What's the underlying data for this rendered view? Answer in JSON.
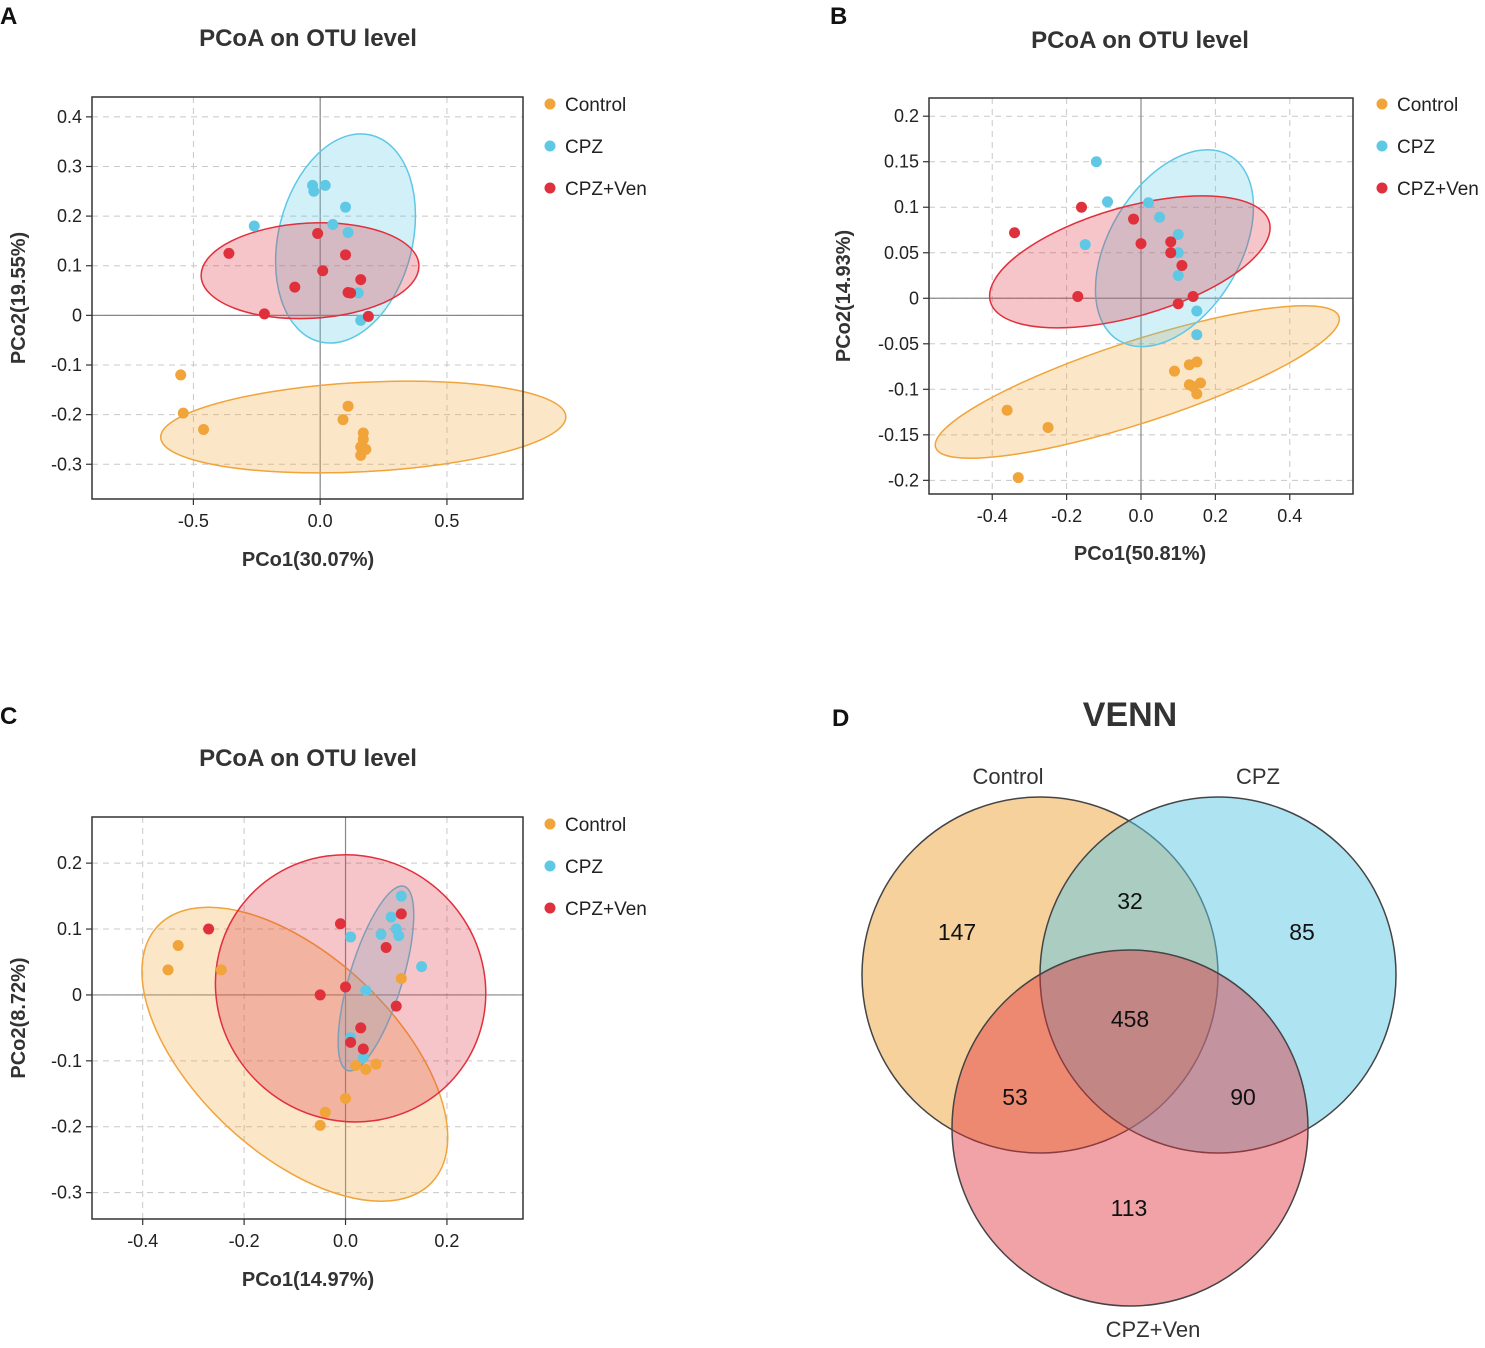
{
  "colors": {
    "Control": "#f0a43a",
    "CPZ": "#5ec8e5",
    "CPZ+Ven": "#e0303c",
    "grid": "#c8c8c8",
    "zero": "#888888"
  },
  "chart_data": [
    {
      "panel": "A",
      "type": "scatter",
      "title": "PCoA on OTU level",
      "xlabel": "PCo1(30.07%)",
      "ylabel": "PCo2(19.55%)",
      "xlim": [
        -0.9,
        0.8
      ],
      "ylim": [
        -0.37,
        0.44
      ],
      "xticks": [
        -0.5,
        0.0,
        0.5
      ],
      "xtick_labels": [
        "-0.5",
        "0.0",
        "0.5"
      ],
      "yticks": [
        -0.3,
        -0.2,
        -0.1,
        0,
        0.1,
        0.2,
        0.3,
        0.4
      ],
      "ytick_labels": [
        "-0.3",
        "-0.2",
        "-0.1",
        "0",
        "0.1",
        "0.2",
        "0.3",
        "0.4"
      ],
      "legend": [
        "Control",
        "CPZ",
        "CPZ+Ven"
      ],
      "series": [
        {
          "name": "Control",
          "points": [
            [
              -0.55,
              -0.12
            ],
            [
              -0.54,
              -0.197
            ],
            [
              -0.46,
              -0.23
            ],
            [
              0.11,
              -0.183
            ],
            [
              0.09,
              -0.21
            ],
            [
              0.17,
              -0.237
            ],
            [
              0.17,
              -0.25
            ],
            [
              0.16,
              -0.265
            ],
            [
              0.18,
              -0.27
            ],
            [
              0.16,
              -0.282
            ]
          ],
          "ellipse": {
            "cx": 0.17,
            "cy": -0.225,
            "rx": 0.8,
            "ry": 0.09,
            "angle": -3
          }
        },
        {
          "name": "CPZ",
          "points": [
            [
              -0.03,
              0.262
            ],
            [
              -0.025,
              0.25
            ],
            [
              0.02,
              0.262
            ],
            [
              -0.26,
              0.18
            ],
            [
              0.1,
              0.218
            ],
            [
              0.05,
              0.183
            ],
            [
              0.11,
              0.167
            ],
            [
              0.15,
              0.045
            ],
            [
              0.16,
              -0.01
            ],
            [
              0.19,
              -0.002
            ]
          ],
          "ellipse": {
            "cx": 0.1,
            "cy": 0.155,
            "rx": 0.42,
            "ry": 0.135,
            "angle": -76
          }
        },
        {
          "name": "CPZ+Ven",
          "points": [
            [
              -0.36,
              0.125
            ],
            [
              -0.01,
              0.165
            ],
            [
              0.1,
              0.122
            ],
            [
              0.01,
              0.09
            ],
            [
              0.16,
              0.072
            ],
            [
              -0.1,
              0.057
            ],
            [
              0.11,
              0.046
            ],
            [
              0.12,
              0.045
            ],
            [
              -0.22,
              0.003
            ],
            [
              0.19,
              -0.002
            ]
          ],
          "ellipse": {
            "cx": -0.04,
            "cy": 0.09,
            "rx": 0.43,
            "ry": 0.096,
            "angle": -3
          }
        }
      ]
    },
    {
      "panel": "B",
      "type": "scatter",
      "title": "PCoA on OTU level",
      "xlabel": "PCo1(50.81%)",
      "ylabel": "PCo2(14.93%)",
      "xlim": [
        -0.57,
        0.57
      ],
      "ylim": [
        -0.215,
        0.22
      ],
      "xticks": [
        -0.4,
        -0.2,
        0.0,
        0.2,
        0.4
      ],
      "xtick_labels": [
        "-0.4",
        "-0.2",
        "0.0",
        "0.2",
        "0.4"
      ],
      "yticks": [
        -0.2,
        -0.15,
        -0.1,
        -0.05,
        0,
        0.05,
        0.1,
        0.15,
        0.2
      ],
      "ytick_labels": [
        "-0.2",
        "-0.15",
        "-0.1",
        "-0.05",
        "0",
        "0.05",
        "0.1",
        "0.15",
        "0.2"
      ],
      "legend": [
        "Control",
        "CPZ",
        "CPZ+Ven"
      ],
      "series": [
        {
          "name": "Control",
          "points": [
            [
              -0.36,
              -0.123
            ],
            [
              -0.25,
              -0.142
            ],
            [
              -0.33,
              -0.197
            ],
            [
              0.09,
              -0.08
            ],
            [
              0.13,
              -0.073
            ],
            [
              0.15,
              -0.07
            ],
            [
              0.13,
              -0.095
            ],
            [
              0.14,
              -0.097
            ],
            [
              0.16,
              -0.093
            ],
            [
              0.15,
              -0.105
            ]
          ],
          "ellipse": {
            "cx": -0.01,
            "cy": -0.092,
            "rx": 0.57,
            "ry": 0.045,
            "angle": -18
          }
        },
        {
          "name": "CPZ",
          "points": [
            [
              -0.12,
              0.15
            ],
            [
              -0.09,
              0.106
            ],
            [
              0.02,
              0.105
            ],
            [
              0.05,
              0.089
            ],
            [
              0.1,
              0.07
            ],
            [
              -0.15,
              0.059
            ],
            [
              0.1,
              0.025
            ],
            [
              0.15,
              -0.014
            ],
            [
              0.15,
              -0.04
            ],
            [
              0.1,
              0.05
            ]
          ],
          "ellipse": {
            "cx": 0.09,
            "cy": 0.055,
            "rx": 0.29,
            "ry": 0.072,
            "angle": -59
          }
        },
        {
          "name": "CPZ+Ven",
          "points": [
            [
              -0.34,
              0.072
            ],
            [
              -0.16,
              0.1
            ],
            [
              -0.02,
              0.087
            ],
            [
              0.0,
              0.06
            ],
            [
              0.08,
              0.062
            ],
            [
              0.08,
              0.05
            ],
            [
              0.11,
              0.036
            ],
            [
              -0.17,
              0.002
            ],
            [
              0.1,
              -0.006
            ],
            [
              0.14,
              0.002
            ]
          ],
          "ellipse": {
            "cx": -0.03,
            "cy": 0.04,
            "rx": 0.39,
            "ry": 0.06,
            "angle": -16
          }
        }
      ]
    },
    {
      "panel": "C",
      "type": "scatter",
      "title": "PCoA on OTU level",
      "xlabel": "PCo1(14.97%)",
      "ylabel": "PCo2(8.72%)",
      "xlim": [
        -0.5,
        0.35
      ],
      "ylim": [
        -0.34,
        0.27
      ],
      "xticks": [
        -0.4,
        -0.2,
        0.0,
        0.2
      ],
      "xtick_labels": [
        "-0.4",
        "-0.2",
        "0.0",
        "0.2"
      ],
      "yticks": [
        -0.3,
        -0.2,
        -0.1,
        0,
        0.1,
        0.2
      ],
      "ytick_labels": [
        "-0.3",
        "-0.2",
        "-0.1",
        "0",
        "0.1",
        "0.2"
      ],
      "legend": [
        "Control",
        "CPZ",
        "CPZ+Ven"
      ],
      "series": [
        {
          "name": "Control",
          "points": [
            [
              -0.33,
              0.075
            ],
            [
              -0.35,
              0.038
            ],
            [
              -0.245,
              0.038
            ],
            [
              0.11,
              0.025
            ],
            [
              0.02,
              -0.107
            ],
            [
              0.04,
              -0.113
            ],
            [
              0.06,
              -0.105
            ],
            [
              -0.04,
              -0.178
            ],
            [
              -0.05,
              -0.198
            ],
            [
              0.0,
              -0.157
            ]
          ],
          "ellipse": {
            "cx": -0.1,
            "cy": -0.09,
            "rx": 0.37,
            "ry": 0.15,
            "angle": 43
          }
        },
        {
          "name": "CPZ",
          "points": [
            [
              0.11,
              0.15
            ],
            [
              0.09,
              0.118
            ],
            [
              0.1,
              0.1
            ],
            [
              0.07,
              0.092
            ],
            [
              0.105,
              0.09
            ],
            [
              0.01,
              0.088
            ],
            [
              0.15,
              0.043
            ],
            [
              0.04,
              0.007
            ],
            [
              0.01,
              -0.065
            ],
            [
              0.035,
              -0.095
            ]
          ],
          "ellipse": {
            "cx": 0.06,
            "cy": 0.025,
            "rx": 0.19,
            "ry": 0.04,
            "angle": -73
          }
        },
        {
          "name": "CPZ+Ven",
          "points": [
            [
              -0.27,
              0.1
            ],
            [
              -0.01,
              0.108
            ],
            [
              0.11,
              0.123
            ],
            [
              0.08,
              0.072
            ],
            [
              0.0,
              0.012
            ],
            [
              -0.05,
              0.0
            ],
            [
              0.1,
              -0.017
            ],
            [
              0.03,
              -0.05
            ],
            [
              0.01,
              -0.072
            ],
            [
              0.035,
              -0.082
            ]
          ],
          "ellipse": {
            "cx": 0.01,
            "cy": 0.01,
            "rx": 0.27,
            "ry": 0.2,
            "angle": 36
          }
        }
      ]
    },
    {
      "panel": "D",
      "type": "venn",
      "title": "VENN",
      "sets": [
        "Control",
        "CPZ",
        "CPZ+Ven"
      ],
      "regions": {
        "Control_only": 147,
        "CPZ_only": 85,
        "CPZ+Ven_only": 113,
        "Control&CPZ": 32,
        "Control&CPZ+Ven": 53,
        "CPZ&CPZ+Ven": 90,
        "all": 458
      }
    }
  ]
}
